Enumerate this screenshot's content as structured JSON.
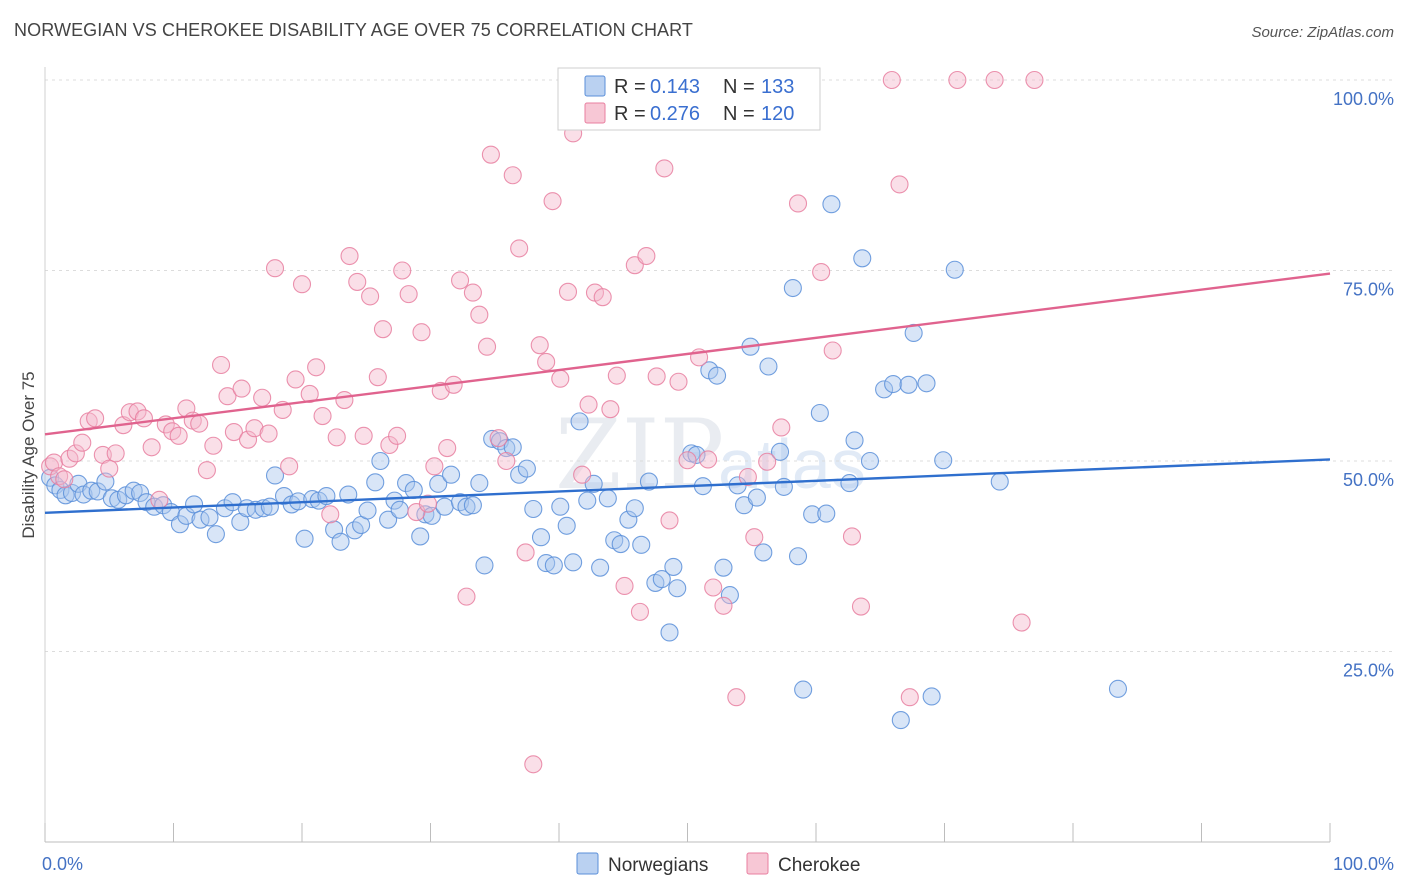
{
  "title": "NORWEGIAN VS CHEROKEE DISABILITY AGE OVER 75 CORRELATION CHART",
  "source": "Source: ZipAtlas.com",
  "colors": {
    "norwegians": "#5b8fd9",
    "norwegians_fill": "#a9c6ee",
    "cherokee": "#e87fa0",
    "cherokee_fill": "#f5b9cb",
    "norwegians_line": "#2f6fce",
    "cherokee_line": "#e0638e",
    "tick_label": "#4472c4"
  },
  "legend": {
    "r_label": "R =",
    "n_label": "N =",
    "norwegians": {
      "r": "0.143",
      "n": "133"
    },
    "cherokee": {
      "r": "0.276",
      "n": "120"
    }
  },
  "bottom_legend": [
    "Norwegians",
    "Cherokee"
  ],
  "watermark": {
    "zip": "ZIP",
    "atlas": "atlas"
  },
  "chart_data": {
    "type": "scatter",
    "title": "NORWEGIAN VS CHEROKEE DISABILITY AGE OVER 75 CORRELATION CHART",
    "xlabel": "",
    "ylabel": "Disability Age Over 75",
    "xlim": [
      0,
      100
    ],
    "ylim": [
      0,
      100
    ],
    "x_ticks": [
      "0.0%",
      "100.0%"
    ],
    "y_ticks": [
      {
        "value": 25,
        "label": "25.0%"
      },
      {
        "value": 50,
        "label": "50.0%"
      },
      {
        "value": 75,
        "label": "75.0%"
      },
      {
        "value": 100,
        "label": "100.0%"
      }
    ],
    "grid": true,
    "legend_position": "top-center",
    "series": [
      {
        "name": "Norwegians",
        "trend": {
          "x": [
            0,
            100
          ],
          "y": [
            43.2,
            50.2
          ]
        },
        "points": [
          [
            0.4,
            47.8
          ],
          [
            0.8,
            46.8
          ],
          [
            1.2,
            46.2
          ],
          [
            1.6,
            45.5
          ],
          [
            2.1,
            45.8
          ],
          [
            2.6,
            47.0
          ],
          [
            3.0,
            45.6
          ],
          [
            3.6,
            46.1
          ],
          [
            4.1,
            46.0
          ],
          [
            4.7,
            47.3
          ],
          [
            5.2,
            45.1
          ],
          [
            5.7,
            44.9
          ],
          [
            6.3,
            45.5
          ],
          [
            6.9,
            46.1
          ],
          [
            7.4,
            45.8
          ],
          [
            7.9,
            44.6
          ],
          [
            8.5,
            44.0
          ],
          [
            9.2,
            44.2
          ],
          [
            9.8,
            43.3
          ],
          [
            10.5,
            41.7
          ],
          [
            11.0,
            42.8
          ],
          [
            11.6,
            44.3
          ],
          [
            12.1,
            42.3
          ],
          [
            12.8,
            42.6
          ],
          [
            13.3,
            40.4
          ],
          [
            14.0,
            43.8
          ],
          [
            14.6,
            44.6
          ],
          [
            15.2,
            42.0
          ],
          [
            15.7,
            43.8
          ],
          [
            16.4,
            43.6
          ],
          [
            17.0,
            43.8
          ],
          [
            17.5,
            44.0
          ],
          [
            17.9,
            48.1
          ],
          [
            18.6,
            45.4
          ],
          [
            19.2,
            44.3
          ],
          [
            19.7,
            44.7
          ],
          [
            20.2,
            39.8
          ],
          [
            20.8,
            45.0
          ],
          [
            21.3,
            44.8
          ],
          [
            21.9,
            45.4
          ],
          [
            22.5,
            41.0
          ],
          [
            23.0,
            39.4
          ],
          [
            23.6,
            45.6
          ],
          [
            24.1,
            40.9
          ],
          [
            24.6,
            41.6
          ],
          [
            25.1,
            43.5
          ],
          [
            25.7,
            47.2
          ],
          [
            26.1,
            50.0
          ],
          [
            26.7,
            42.3
          ],
          [
            27.2,
            44.8
          ],
          [
            27.6,
            43.6
          ],
          [
            28.1,
            47.1
          ],
          [
            28.7,
            46.2
          ],
          [
            29.2,
            40.1
          ],
          [
            29.6,
            43.0
          ],
          [
            30.1,
            42.8
          ],
          [
            30.6,
            47.0
          ],
          [
            31.1,
            44.0
          ],
          [
            31.6,
            48.2
          ],
          [
            32.3,
            44.6
          ],
          [
            32.8,
            44.0
          ],
          [
            33.3,
            44.2
          ],
          [
            33.8,
            47.1
          ],
          [
            34.2,
            36.3
          ],
          [
            34.8,
            52.9
          ],
          [
            35.4,
            52.6
          ],
          [
            35.9,
            51.7
          ],
          [
            36.4,
            51.8
          ],
          [
            36.9,
            48.2
          ],
          [
            37.5,
            49.0
          ],
          [
            38.0,
            43.7
          ],
          [
            38.6,
            40.0
          ],
          [
            39.0,
            36.6
          ],
          [
            39.6,
            36.3
          ],
          [
            40.1,
            44.0
          ],
          [
            40.6,
            41.5
          ],
          [
            41.1,
            36.7
          ],
          [
            41.6,
            55.2
          ],
          [
            42.2,
            44.8
          ],
          [
            42.7,
            47.0
          ],
          [
            43.2,
            36.0
          ],
          [
            43.8,
            45.1
          ],
          [
            44.3,
            39.6
          ],
          [
            44.8,
            39.1
          ],
          [
            45.4,
            42.3
          ],
          [
            45.9,
            43.8
          ],
          [
            46.4,
            39.0
          ],
          [
            47.0,
            47.3
          ],
          [
            47.5,
            34.0
          ],
          [
            48.0,
            34.5
          ],
          [
            48.6,
            27.5
          ],
          [
            48.9,
            36.1
          ],
          [
            49.2,
            33.3
          ],
          [
            50.3,
            51.0
          ],
          [
            50.7,
            50.8
          ],
          [
            51.2,
            46.7
          ],
          [
            51.7,
            61.9
          ],
          [
            52.3,
            61.2
          ],
          [
            52.8,
            36.0
          ],
          [
            53.3,
            32.4
          ],
          [
            53.9,
            46.8
          ],
          [
            54.4,
            44.2
          ],
          [
            54.9,
            65.0
          ],
          [
            55.4,
            45.2
          ],
          [
            55.9,
            38.0
          ],
          [
            56.3,
            62.4
          ],
          [
            57.2,
            51.2
          ],
          [
            57.5,
            46.6
          ],
          [
            58.2,
            72.7
          ],
          [
            58.6,
            37.5
          ],
          [
            59.0,
            20.0
          ],
          [
            59.7,
            43.0
          ],
          [
            60.3,
            56.3
          ],
          [
            60.8,
            43.1
          ],
          [
            61.2,
            83.7
          ],
          [
            62.6,
            47.1
          ],
          [
            63.0,
            52.7
          ],
          [
            63.6,
            76.6
          ],
          [
            64.2,
            50.0
          ],
          [
            65.3,
            59.4
          ],
          [
            66.0,
            60.1
          ],
          [
            66.6,
            16.0
          ],
          [
            67.2,
            60.0
          ],
          [
            67.6,
            66.8
          ],
          [
            68.6,
            60.2
          ],
          [
            69.0,
            19.1
          ],
          [
            69.9,
            50.1
          ],
          [
            70.8,
            75.1
          ],
          [
            74.3,
            47.3
          ],
          [
            83.5,
            20.1
          ]
        ]
      },
      {
        "name": "Cherokee",
        "trend": {
          "x": [
            0,
            100
          ],
          "y": [
            53.5,
            74.6
          ]
        },
        "points": [
          [
            0.4,
            49.3
          ],
          [
            0.7,
            49.8
          ],
          [
            1.1,
            48.0
          ],
          [
            1.5,
            47.6
          ],
          [
            1.9,
            50.3
          ],
          [
            2.4,
            51.0
          ],
          [
            2.9,
            52.4
          ],
          [
            3.4,
            55.2
          ],
          [
            3.9,
            55.6
          ],
          [
            4.5,
            50.8
          ],
          [
            5.0,
            49.0
          ],
          [
            5.5,
            51.0
          ],
          [
            6.1,
            54.7
          ],
          [
            6.6,
            56.4
          ],
          [
            7.2,
            56.5
          ],
          [
            7.7,
            55.6
          ],
          [
            8.3,
            51.8
          ],
          [
            8.9,
            44.9
          ],
          [
            9.4,
            54.8
          ],
          [
            9.9,
            53.9
          ],
          [
            10.4,
            53.3
          ],
          [
            11.0,
            56.9
          ],
          [
            11.5,
            55.3
          ],
          [
            12.0,
            54.9
          ],
          [
            12.6,
            48.8
          ],
          [
            13.1,
            52.0
          ],
          [
            13.7,
            62.6
          ],
          [
            14.2,
            58.5
          ],
          [
            14.7,
            53.8
          ],
          [
            15.3,
            59.5
          ],
          [
            15.8,
            52.8
          ],
          [
            16.3,
            54.3
          ],
          [
            16.9,
            58.3
          ],
          [
            17.4,
            53.6
          ],
          [
            17.9,
            75.3
          ],
          [
            18.5,
            56.7
          ],
          [
            19.0,
            49.3
          ],
          [
            19.5,
            60.7
          ],
          [
            20.0,
            73.2
          ],
          [
            20.6,
            58.8
          ],
          [
            21.1,
            62.3
          ],
          [
            21.6,
            55.9
          ],
          [
            22.2,
            43.0
          ],
          [
            22.7,
            53.1
          ],
          [
            23.3,
            58.0
          ],
          [
            23.7,
            76.9
          ],
          [
            24.3,
            73.5
          ],
          [
            24.8,
            53.3
          ],
          [
            25.3,
            71.6
          ],
          [
            25.9,
            61.0
          ],
          [
            26.3,
            67.3
          ],
          [
            26.8,
            52.1
          ],
          [
            27.4,
            53.3
          ],
          [
            27.8,
            75.0
          ],
          [
            28.3,
            71.9
          ],
          [
            28.9,
            43.3
          ],
          [
            29.3,
            66.9
          ],
          [
            29.8,
            44.4
          ],
          [
            30.3,
            49.3
          ],
          [
            30.8,
            59.2
          ],
          [
            31.3,
            51.7
          ],
          [
            31.8,
            60.0
          ],
          [
            32.3,
            73.7
          ],
          [
            32.8,
            32.2
          ],
          [
            33.3,
            72.1
          ],
          [
            33.8,
            69.2
          ],
          [
            34.4,
            65.0
          ],
          [
            34.7,
            90.2
          ],
          [
            35.3,
            53.0
          ],
          [
            35.9,
            50.0
          ],
          [
            36.4,
            87.5
          ],
          [
            36.9,
            77.9
          ],
          [
            37.4,
            38.0
          ],
          [
            38.0,
            10.2
          ],
          [
            38.5,
            65.2
          ],
          [
            39.0,
            63.0
          ],
          [
            39.5,
            84.1
          ],
          [
            40.1,
            60.8
          ],
          [
            40.7,
            72.2
          ],
          [
            41.1,
            93.0
          ],
          [
            41.8,
            48.2
          ],
          [
            42.3,
            57.4
          ],
          [
            42.8,
            72.1
          ],
          [
            43.4,
            71.5
          ],
          [
            44.0,
            56.8
          ],
          [
            44.5,
            61.2
          ],
          [
            45.1,
            33.6
          ],
          [
            45.9,
            75.7
          ],
          [
            46.3,
            30.2
          ],
          [
            46.8,
            76.9
          ],
          [
            47.2,
            100
          ],
          [
            47.6,
            61.1
          ],
          [
            48.2,
            88.4
          ],
          [
            48.6,
            42.2
          ],
          [
            49.3,
            60.4
          ],
          [
            50.0,
            50.1
          ],
          [
            50.9,
            63.6
          ],
          [
            51.6,
            50.2
          ],
          [
            52.0,
            33.4
          ],
          [
            52.8,
            31.0
          ],
          [
            53.8,
            19.0
          ],
          [
            54.7,
            47.9
          ],
          [
            55.2,
            40.0
          ],
          [
            56.2,
            49.9
          ],
          [
            56.7,
            100
          ],
          [
            57.3,
            54.4
          ],
          [
            57.7,
            100
          ],
          [
            58.6,
            83.8
          ],
          [
            59.3,
            100
          ],
          [
            60.4,
            74.8
          ],
          [
            61.3,
            64.5
          ],
          [
            62.8,
            40.1
          ],
          [
            63.5,
            30.9
          ],
          [
            65.9,
            100
          ],
          [
            66.5,
            86.3
          ],
          [
            67.3,
            19.0
          ],
          [
            71.0,
            100
          ],
          [
            73.9,
            100
          ],
          [
            76.0,
            28.8
          ],
          [
            77.0,
            100
          ]
        ]
      }
    ]
  }
}
